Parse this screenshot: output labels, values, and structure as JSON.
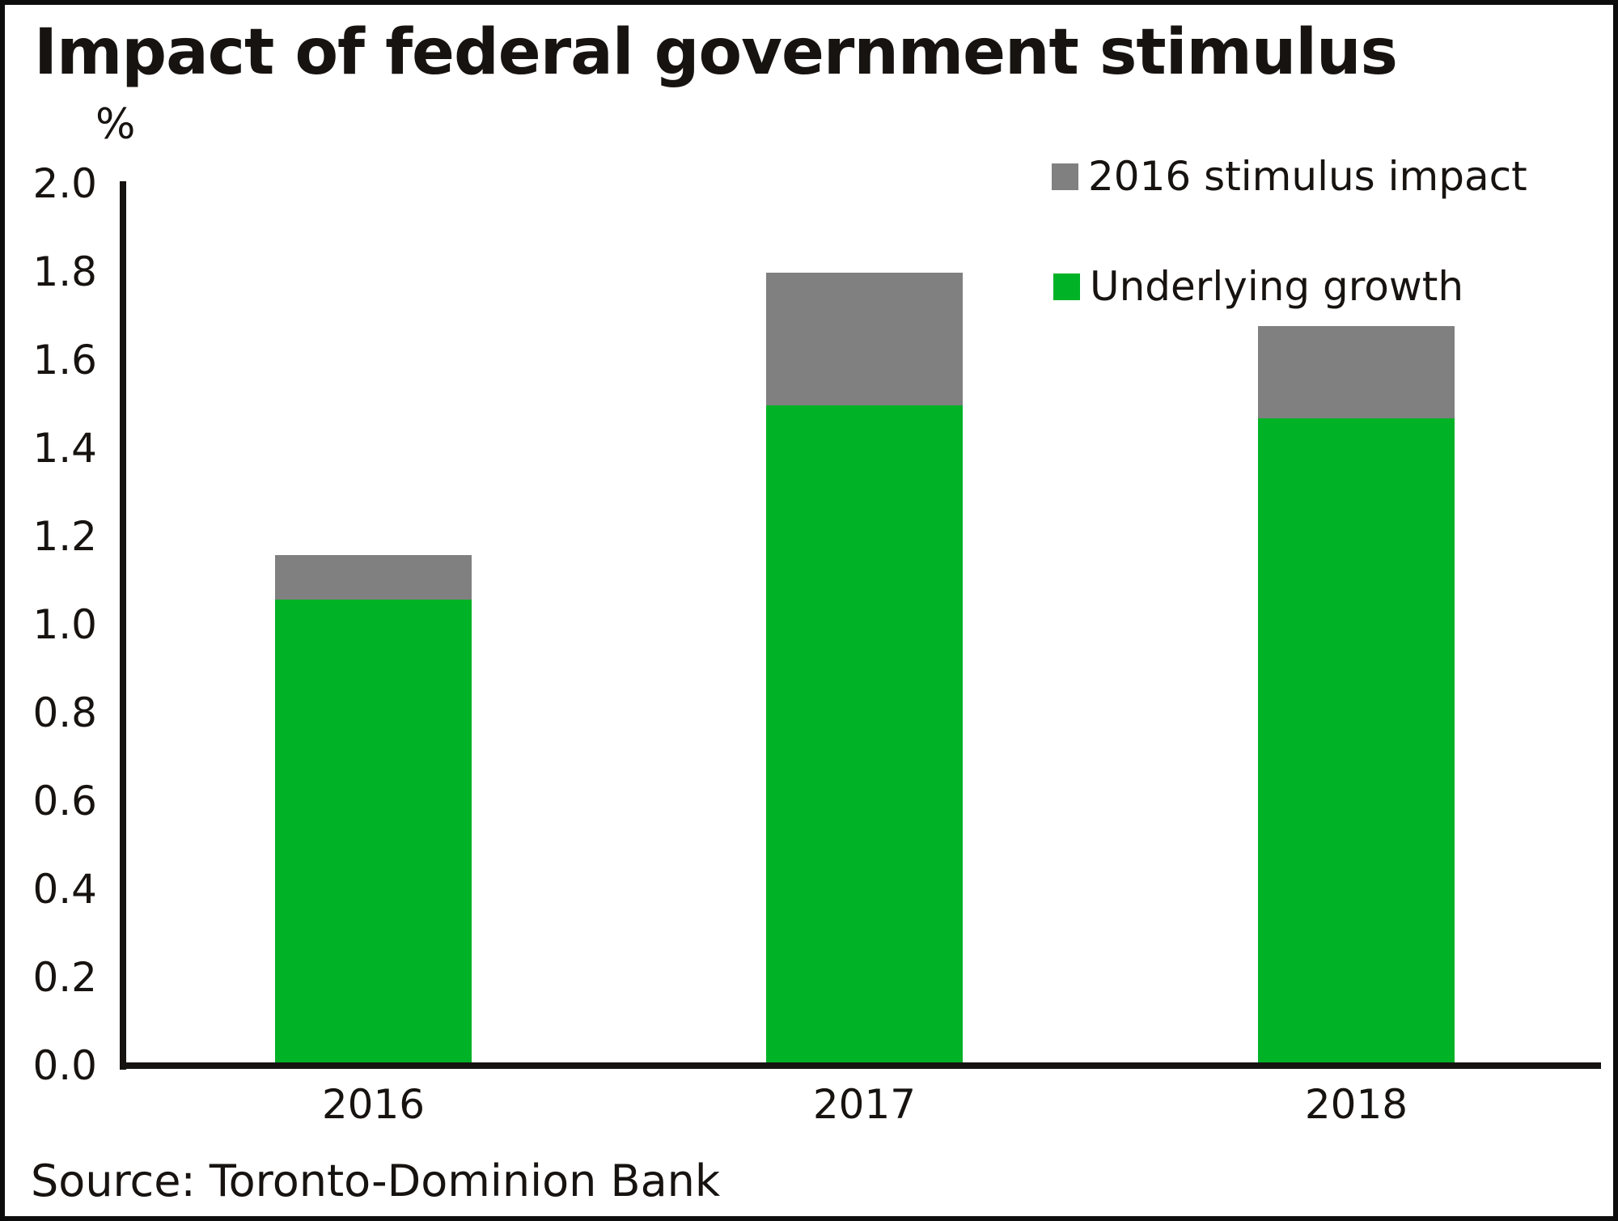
{
  "header": {
    "title": "Impact of federal government stimulus"
  },
  "source_line": "Source: Toronto-Dominion Bank",
  "chart_data": {
    "type": "bar",
    "stacked": true,
    "title": "Impact of federal government stimulus",
    "ylabel": "%",
    "xlabel": "",
    "categories": [
      "2016",
      "2017",
      "2018"
    ],
    "series": [
      {
        "name": "Underlying growth",
        "color": "#00b226",
        "values": [
          1.05,
          1.49,
          1.46
        ]
      },
      {
        "name": "2016 stimulus impact",
        "color": "#808080",
        "values": [
          0.1,
          0.3,
          0.21
        ]
      }
    ],
    "totals": [
      1.15,
      1.79,
      1.67
    ],
    "ylim": [
      0.0,
      2.0
    ],
    "ytick_step": 0.2,
    "y_ticks": [
      "0.0",
      "0.2",
      "0.4",
      "0.6",
      "0.8",
      "1.0",
      "1.2",
      "1.4",
      "1.6",
      "1.8",
      "2.0"
    ],
    "grid": false,
    "legend_position": "top-right",
    "axis_color": "#171310"
  }
}
